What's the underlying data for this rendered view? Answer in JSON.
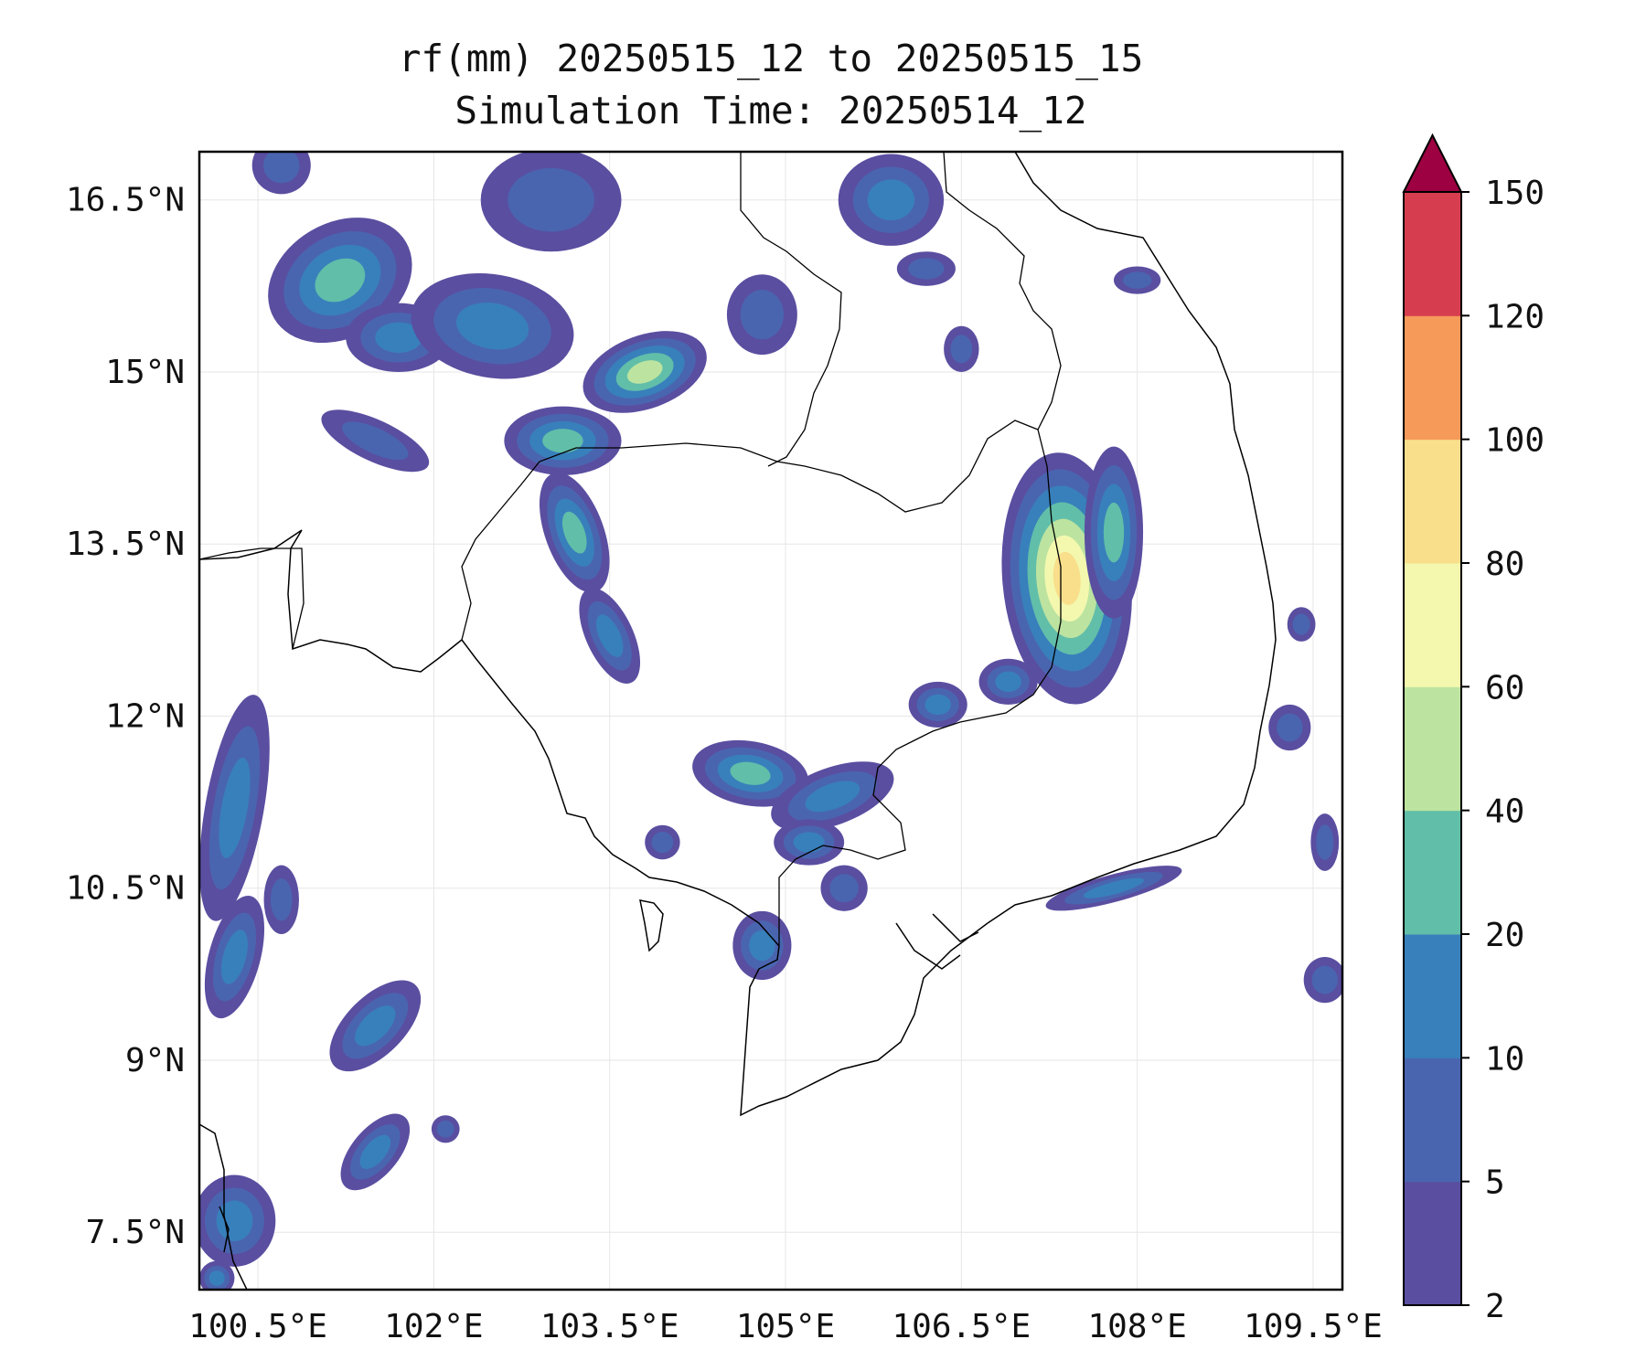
{
  "title": "rf(mm) 20250515_12 to 20250515_15",
  "subtitle": "Simulation Time: 20250514_12",
  "map": {
    "lon_range": [
      100.0,
      109.75
    ],
    "lat_range": [
      7.0,
      16.92
    ],
    "grid": true,
    "lon_ticks": [
      "100.5°E",
      "102°E",
      "103.5°E",
      "105°E",
      "106.5°E",
      "108°E",
      "109.5°E"
    ],
    "lat_ticks": [
      "16.5°N",
      "15°N",
      "13.5°N",
      "12°N",
      "10.5°N",
      "9°N",
      "7.5°N"
    ]
  },
  "colorbar": {
    "levels": [
      "2",
      "5",
      "10",
      "20",
      "40",
      "60",
      "80",
      "100",
      "120",
      "150"
    ],
    "colors": [
      "#5a4ea0",
      "#4a65b0",
      "#3880bb",
      "#61bea9",
      "#bce3a0",
      "#f3f8ae",
      "#f9df8b",
      "#f69a5a",
      "#d63e50",
      "#9e0142"
    ],
    "extend": "max"
  },
  "rain_cells": [
    {
      "lon": 101.2,
      "lat": 15.8,
      "rx": 0.65,
      "ry": 0.5,
      "rot": -30,
      "max": "20"
    },
    {
      "lon": 100.7,
      "lat": 16.8,
      "rx": 0.25,
      "ry": 0.25,
      "rot": 0,
      "max": "5"
    },
    {
      "lon": 101.5,
      "lat": 14.4,
      "rx": 0.5,
      "ry": 0.18,
      "rot": 25,
      "max": "5"
    },
    {
      "lon": 101.7,
      "lat": 15.3,
      "rx": 0.45,
      "ry": 0.3,
      "rot": 0,
      "max": "10"
    },
    {
      "lon": 102.5,
      "lat": 15.4,
      "rx": 0.7,
      "ry": 0.45,
      "rot": 10,
      "max": "10"
    },
    {
      "lon": 103.0,
      "lat": 16.5,
      "rx": 0.6,
      "ry": 0.45,
      "rot": 0,
      "max": "5"
    },
    {
      "lon": 103.8,
      "lat": 15.0,
      "rx": 0.55,
      "ry": 0.32,
      "rot": -20,
      "max": "40"
    },
    {
      "lon": 103.1,
      "lat": 14.4,
      "rx": 0.5,
      "ry": 0.3,
      "rot": 0,
      "max": "20"
    },
    {
      "lon": 103.2,
      "lat": 13.6,
      "rx": 0.25,
      "ry": 0.55,
      "rot": -20,
      "max": "20"
    },
    {
      "lon": 103.5,
      "lat": 12.7,
      "rx": 0.2,
      "ry": 0.45,
      "rot": -25,
      "max": "10"
    },
    {
      "lon": 104.8,
      "lat": 15.5,
      "rx": 0.3,
      "ry": 0.35,
      "rot": 0,
      "max": "5"
    },
    {
      "lon": 105.9,
      "lat": 16.5,
      "rx": 0.45,
      "ry": 0.4,
      "rot": 0,
      "max": "10"
    },
    {
      "lon": 106.2,
      "lat": 15.9,
      "rx": 0.25,
      "ry": 0.15,
      "rot": 0,
      "max": "5"
    },
    {
      "lon": 106.5,
      "lat": 15.2,
      "rx": 0.15,
      "ry": 0.2,
      "rot": 0,
      "max": "5"
    },
    {
      "lon": 108.0,
      "lat": 15.8,
      "rx": 0.2,
      "ry": 0.12,
      "rot": 0,
      "max": "5"
    },
    {
      "lon": 107.4,
      "lat": 13.2,
      "rx": 0.55,
      "ry": 1.1,
      "rot": -5,
      "max": "80"
    },
    {
      "lon": 107.8,
      "lat": 13.6,
      "rx": 0.25,
      "ry": 0.75,
      "rot": 0,
      "max": "20"
    },
    {
      "lon": 106.9,
      "lat": 12.3,
      "rx": 0.25,
      "ry": 0.2,
      "rot": 0,
      "max": "10"
    },
    {
      "lon": 106.3,
      "lat": 12.1,
      "rx": 0.25,
      "ry": 0.2,
      "rot": 0,
      "max": "10"
    },
    {
      "lon": 104.7,
      "lat": 11.5,
      "rx": 0.5,
      "ry": 0.28,
      "rot": 10,
      "max": "20"
    },
    {
      "lon": 105.4,
      "lat": 11.3,
      "rx": 0.55,
      "ry": 0.25,
      "rot": -20,
      "max": "10"
    },
    {
      "lon": 105.2,
      "lat": 10.9,
      "rx": 0.3,
      "ry": 0.2,
      "rot": 0,
      "max": "10"
    },
    {
      "lon": 105.5,
      "lat": 10.5,
      "rx": 0.2,
      "ry": 0.2,
      "rot": 0,
      "max": "5"
    },
    {
      "lon": 104.8,
      "lat": 10.0,
      "rx": 0.25,
      "ry": 0.3,
      "rot": 0,
      "max": "10"
    },
    {
      "lon": 103.95,
      "lat": 10.9,
      "rx": 0.15,
      "ry": 0.15,
      "rot": 0,
      "max": "5"
    },
    {
      "lon": 107.8,
      "lat": 10.5,
      "rx": 0.6,
      "ry": 0.12,
      "rot": -15,
      "max": "10"
    },
    {
      "lon": 109.3,
      "lat": 11.9,
      "rx": 0.18,
      "ry": 0.2,
      "rot": 0,
      "max": "5"
    },
    {
      "lon": 109.4,
      "lat": 12.8,
      "rx": 0.12,
      "ry": 0.15,
      "rot": 0,
      "max": "5"
    },
    {
      "lon": 109.6,
      "lat": 9.7,
      "rx": 0.18,
      "ry": 0.2,
      "rot": 0,
      "max": "5"
    },
    {
      "lon": 109.6,
      "lat": 10.9,
      "rx": 0.12,
      "ry": 0.25,
      "rot": 0,
      "max": "5"
    },
    {
      "lon": 100.3,
      "lat": 11.2,
      "rx": 0.25,
      "ry": 1.0,
      "rot": 10,
      "max": "10"
    },
    {
      "lon": 100.3,
      "lat": 9.9,
      "rx": 0.22,
      "ry": 0.55,
      "rot": 15,
      "max": "10"
    },
    {
      "lon": 101.5,
      "lat": 9.3,
      "rx": 0.25,
      "ry": 0.5,
      "rot": 45,
      "max": "10"
    },
    {
      "lon": 101.5,
      "lat": 8.2,
      "rx": 0.2,
      "ry": 0.4,
      "rot": 40,
      "max": "10"
    },
    {
      "lon": 100.3,
      "lat": 7.6,
      "rx": 0.35,
      "ry": 0.4,
      "rot": 0,
      "max": "10"
    },
    {
      "lon": 100.15,
      "lat": 7.1,
      "rx": 0.15,
      "ry": 0.15,
      "rot": 0,
      "max": "10"
    },
    {
      "lon": 100.7,
      "lat": 10.4,
      "rx": 0.15,
      "ry": 0.3,
      "rot": 0,
      "max": "5"
    },
    {
      "lon": 102.1,
      "lat": 8.4,
      "rx": 0.12,
      "ry": 0.12,
      "rot": 0,
      "max": "5"
    }
  ]
}
